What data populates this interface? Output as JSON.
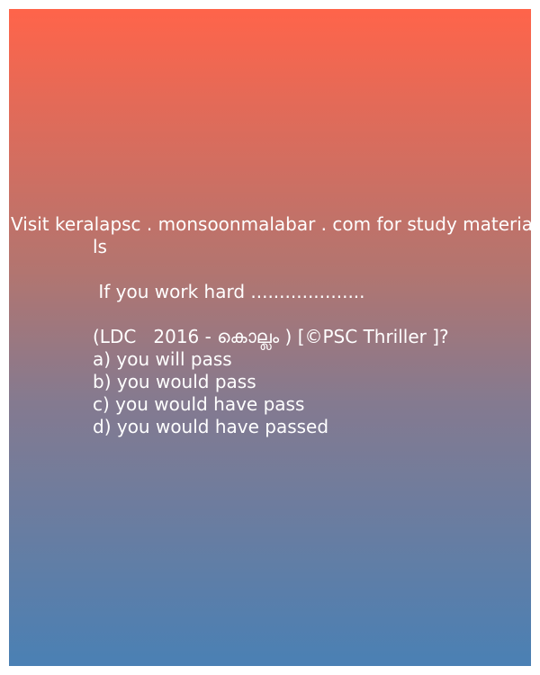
{
  "promo": {
    "line1": "Visit keralapsc . monsoonmalabar . com for study materia",
    "line2": "ls"
  },
  "question": {
    "text": " If you work hard ....................",
    "source": "(LDC   2016 - കൊല്ലം ) [©PSC Thriller ]?"
  },
  "options": [
    "a) you will pass",
    "b) you would pass",
    "c) you would have pass",
    "d) you would have passed"
  ]
}
